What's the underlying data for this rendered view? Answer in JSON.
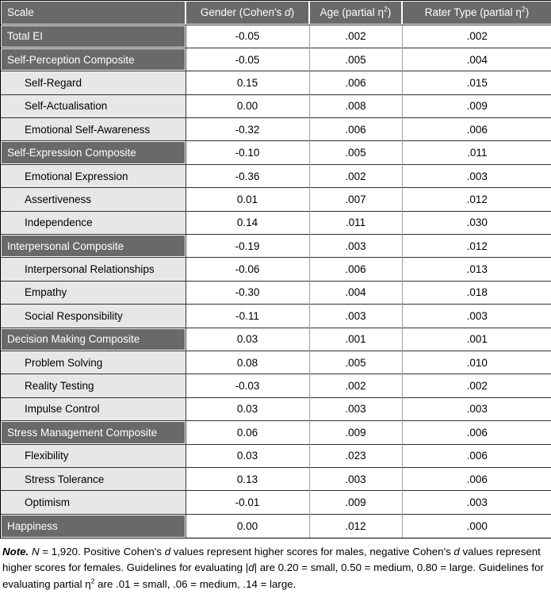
{
  "colors": {
    "header_bg": "#696969",
    "composite_row_bg": "#696969",
    "subscale_label_bg": "#e7e7e7",
    "data_cell_bg": "#ffffff",
    "grid_line": "#2f2f2f",
    "header_text": "#ffffff"
  },
  "table": {
    "header": {
      "scale_label": "Scale",
      "gender_label_segments": [
        {
          "t": "Gender (Cohen's "
        },
        {
          "t": "d",
          "i": true
        },
        {
          "t": ")"
        }
      ],
      "age_label_segments": [
        {
          "t": "Age (partial η"
        },
        {
          "t": "2",
          "sup": true
        },
        {
          "t": ")"
        }
      ],
      "rater_label_segments": [
        {
          "t": "Rater Type (partial η"
        },
        {
          "t": "2",
          "sup": true
        },
        {
          "t": ")"
        }
      ]
    },
    "rows": [
      {
        "label": "Total EI",
        "emphasis": "dark",
        "gender": "-0.05",
        "age": ".002",
        "rater": ".002"
      },
      {
        "label": "Self-Perception Composite",
        "emphasis": "dark",
        "gender": "-0.05",
        "age": ".005",
        "rater": ".004"
      },
      {
        "label": "Self-Regard",
        "emphasis": "light",
        "gender": "0.15",
        "age": ".006",
        "rater": ".015"
      },
      {
        "label": "Self-Actualisation",
        "emphasis": "light",
        "gender": "0.00",
        "age": ".008",
        "rater": ".009"
      },
      {
        "label": "Emotional Self-Awareness",
        "emphasis": "light",
        "gender": "-0.32",
        "age": ".006",
        "rater": ".006"
      },
      {
        "label": "Self-Expression Composite",
        "emphasis": "dark",
        "gender": "-0.10",
        "age": ".005",
        "rater": ".011"
      },
      {
        "label": "Emotional Expression",
        "emphasis": "light",
        "gender": "-0.36",
        "age": ".002",
        "rater": ".003"
      },
      {
        "label": "Assertiveness",
        "emphasis": "light",
        "gender": "0.01",
        "age": ".007",
        "rater": ".012"
      },
      {
        "label": "Independence",
        "emphasis": "light",
        "gender": "0.14",
        "age": ".011",
        "rater": ".030"
      },
      {
        "label": "Interpersonal Composite",
        "emphasis": "dark",
        "gender": "-0.19",
        "age": ".003",
        "rater": ".012"
      },
      {
        "label": "Interpersonal Relationships",
        "emphasis": "light",
        "gender": "-0.06",
        "age": ".006",
        "rater": ".013"
      },
      {
        "label": "Empathy",
        "emphasis": "light",
        "gender": "-0.30",
        "age": ".004",
        "rater": ".018"
      },
      {
        "label": "Social Responsibility",
        "emphasis": "light",
        "gender": "-0.11",
        "age": ".003",
        "rater": ".003"
      },
      {
        "label": "Decision Making Composite",
        "emphasis": "dark",
        "gender": "0.03",
        "age": ".001",
        "rater": ".001"
      },
      {
        "label": "Problem Solving",
        "emphasis": "light",
        "gender": "0.08",
        "age": ".005",
        "rater": ".010"
      },
      {
        "label": "Reality Testing",
        "emphasis": "light",
        "gender": "-0.03",
        "age": ".002",
        "rater": ".002"
      },
      {
        "label": "Impulse Control",
        "emphasis": "light",
        "gender": "0.03",
        "age": ".003",
        "rater": ".003"
      },
      {
        "label": "Stress Management Composite",
        "emphasis": "dark",
        "gender": "0.06",
        "age": ".009",
        "rater": ".006"
      },
      {
        "label": "Flexibility",
        "emphasis": "light",
        "gender": "0.03",
        "age": ".023",
        "rater": ".006"
      },
      {
        "label": "Stress Tolerance",
        "emphasis": "light",
        "gender": "0.13",
        "age": ".003",
        "rater": ".006"
      },
      {
        "label": "Optimism",
        "emphasis": "light",
        "gender": "-0.01",
        "age": ".009",
        "rater": ".003"
      },
      {
        "label": "Happiness",
        "emphasis": "dark",
        "gender": "0.00",
        "age": ".012",
        "rater": ".000"
      }
    ]
  },
  "note_segments": [
    {
      "t": "Note.",
      "b": true,
      "i": true
    },
    {
      "t": " "
    },
    {
      "t": "N",
      "i": true
    },
    {
      "t": " = 1,920. Positive Cohen's "
    },
    {
      "t": "d",
      "i": true
    },
    {
      "t": " values represent higher scores for males, negative Cohen's "
    },
    {
      "t": "d",
      "i": true
    },
    {
      "t": " values represent higher scores for females. Guidelines for evaluating |"
    },
    {
      "t": "d",
      "i": true
    },
    {
      "t": "| are 0.20 = small, 0.50 = medium, 0.80 = large. Guidelines for evaluating partial η"
    },
    {
      "t": "2",
      "sup": true
    },
    {
      "t": " are .01 = small, .06 = medium, .14 = large."
    }
  ]
}
